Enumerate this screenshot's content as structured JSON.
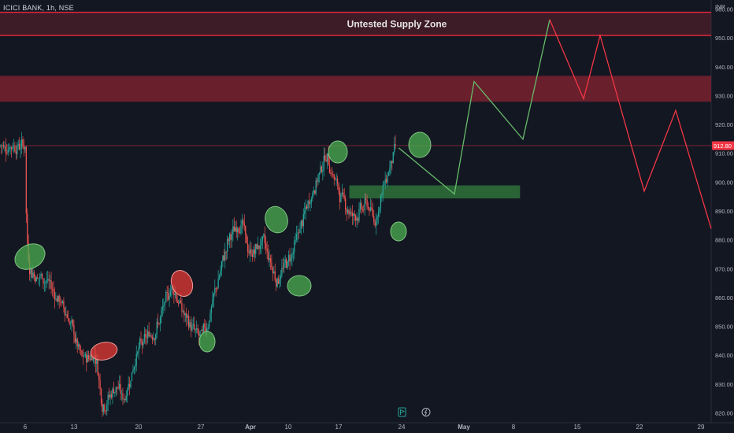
{
  "header": {
    "symbol_line": "ICICI BANK, 1h, NSE"
  },
  "currency": "INR",
  "price_label": "912.80",
  "annotation": "Untested Supply Zone",
  "icons": {
    "flag": "flag-icon",
    "lightning": "lightning-icon"
  },
  "colors": {
    "background": "#131722",
    "up": "#26a69a",
    "down": "#ef5350",
    "supply_zone": "#8b2230",
    "demand_zone": "#2e6b37",
    "projection_up": "#66bb6a",
    "projection_down": "#f23645",
    "price_tag": "#f23645"
  },
  "chart_data": {
    "type": "candlestick",
    "title": "ICICI BANK, 1h, NSE",
    "y_axis_ticks": [
      "960.00",
      "950.00",
      "940.00",
      "930.00",
      "920.00",
      "910.00",
      "900.00",
      "890.00",
      "880.00",
      "870.00",
      "860.00",
      "850.00",
      "840.00",
      "830.00",
      "820.00"
    ],
    "ylim": [
      818,
      962
    ],
    "x_axis_ticks": [
      "6",
      "13",
      "20",
      "27",
      "Apr",
      "10",
      "17",
      "24",
      "May",
      "8",
      "15",
      "22",
      "29"
    ],
    "last_price": 912.8,
    "zones": [
      {
        "label": "Untested Supply Zone",
        "kind": "supply",
        "range": [
          951,
          959
        ]
      },
      {
        "kind": "supply",
        "range": [
          928,
          937
        ]
      },
      {
        "kind": "demand",
        "range": [
          894.5,
          899
        ]
      }
    ],
    "price_path_approx": [
      {
        "x": "6",
        "y": 870
      },
      {
        "x": "13",
        "y": 848
      },
      {
        "x": "16",
        "y": 838
      },
      {
        "x": "18",
        "y": 822
      },
      {
        "x": "20",
        "y": 840
      },
      {
        "x": "24",
        "y": 866
      },
      {
        "x": "27",
        "y": 846
      },
      {
        "x": "Apr",
        "y": 875
      },
      {
        "x": "5",
        "y": 886
      },
      {
        "x": "10",
        "y": 866
      },
      {
        "x": "17",
        "y": 910
      },
      {
        "x": "20",
        "y": 890
      },
      {
        "x": "23",
        "y": 884
      },
      {
        "x": "26",
        "y": 912.8
      }
    ],
    "projection_up": [
      {
        "x": "28",
        "y": 912
      },
      {
        "x": "May 1",
        "y": 896
      },
      {
        "x": "May 3",
        "y": 935
      },
      {
        "x": "May 10",
        "y": 915
      },
      {
        "x": "May 14",
        "y": 956
      }
    ],
    "projection_down": [
      {
        "x": "May 14",
        "y": 956
      },
      {
        "x": "May 16",
        "y": 929
      },
      {
        "x": "May 17",
        "y": 951
      },
      {
        "x": "May 22",
        "y": 897
      },
      {
        "x": "May 26",
        "y": 925
      },
      {
        "x": "May 30",
        "y": 884
      }
    ],
    "marked_swings": [
      {
        "x": "6",
        "y": 872,
        "color": "green"
      },
      {
        "x": "16",
        "y": 840,
        "color": "red"
      },
      {
        "x": "24",
        "y": 867,
        "color": "red"
      },
      {
        "x": "27",
        "y": 845,
        "color": "green"
      },
      {
        "x": "5",
        "y": 888,
        "color": "green"
      },
      {
        "x": "10",
        "y": 866,
        "color": "green"
      },
      {
        "x": "17",
        "y": 911,
        "color": "green"
      },
      {
        "x": "24",
        "y": 884,
        "color": "green"
      },
      {
        "x": "26",
        "y": 913,
        "color": "green"
      }
    ]
  }
}
